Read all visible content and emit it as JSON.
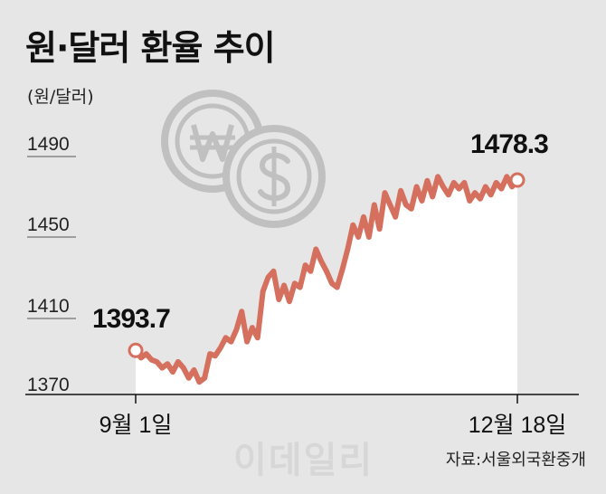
{
  "title": "원·달러 환율 추이",
  "unit": "(원/달러)",
  "source": "자료:서울외국환중개",
  "watermark": "이데일리",
  "colors": {
    "line": "#d6705e",
    "fill": "#ffffff",
    "background": "#e6e6e6",
    "icon": "#c0c0c0"
  },
  "icons": [
    "won-coin-icon",
    "dollar-coin-icon"
  ],
  "chart_data": {
    "type": "line",
    "title": "원·달러 환율 추이",
    "ylabel": "(원/달러)",
    "ylim": [
      1370,
      1490
    ],
    "yticks": [
      "1490",
      "1450",
      "1410",
      "1370"
    ],
    "xticks": [
      "9월 1일",
      "12월 18일"
    ],
    "grid": false,
    "series": [
      {
        "values": [
          1393.7,
          1390,
          1392,
          1389,
          1388,
          1385,
          1387,
          1383,
          1388,
          1385,
          1380,
          1384,
          1378,
          1380,
          1392,
          1391,
          1395,
          1400,
          1398,
          1404,
          1413,
          1398,
          1405,
          1400,
          1423,
          1430,
          1433,
          1419,
          1426,
          1418,
          1427,
          1425,
          1436,
          1433,
          1444,
          1438,
          1433,
          1427,
          1425,
          1434,
          1444,
          1456,
          1450,
          1460,
          1450,
          1466,
          1454,
          1472,
          1466,
          1460,
          1473,
          1466,
          1464,
          1475,
          1468,
          1478,
          1470,
          1480,
          1475,
          1471,
          1477,
          1474,
          1477,
          1468,
          1472,
          1469,
          1475,
          1471,
          1477,
          1474,
          1480,
          1475,
          1478.3
        ]
      }
    ],
    "annotations": [
      {
        "label": "1393.7",
        "value": 1393.7,
        "at": "start"
      },
      {
        "label": "1478.3",
        "value": 1478.3,
        "at": "end"
      }
    ]
  }
}
